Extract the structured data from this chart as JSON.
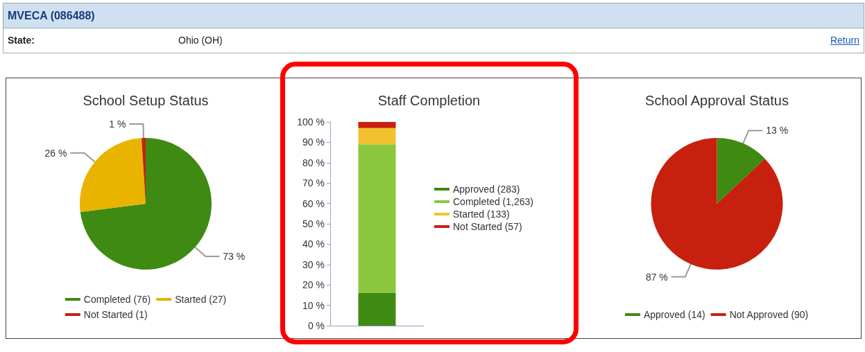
{
  "chart_data": [
    {
      "type": "other",
      "title": "MVECA (086488)",
      "annotations": [
        "State:",
        "Ohio (OH)",
        "Return"
      ]
    },
    {
      "type": "pie",
      "title": "School Setup Status",
      "categories": [
        "Completed (76)",
        "Started (27)",
        "Not Started (1)"
      ],
      "values": [
        73,
        26,
        1
      ],
      "colors": [
        "#3f8a12",
        "#e8b400",
        "#c8200e"
      ],
      "value_labels": [
        "73 %",
        "26 %",
        "1 %"
      ],
      "legend": "bottom"
    },
    {
      "type": "bar",
      "title": "Staff Completion",
      "stacked": true,
      "categories": [
        null
      ],
      "series": [
        {
          "name": "Approved (283)",
          "color": "#3f8a12",
          "values": [
            16
          ]
        },
        {
          "name": "Completed (1,263)",
          "color": "#8cc63f",
          "values": [
            73
          ]
        },
        {
          "name": "Started (133)",
          "color": "#f2c12e",
          "values": [
            8
          ]
        },
        {
          "name": "Not Started (57)",
          "color": "#c8200e",
          "values": [
            3
          ]
        }
      ],
      "ylim": [
        0,
        100
      ],
      "yticks": [
        {
          "value": 0,
          "label": "0 %"
        },
        {
          "value": 10,
          "label": "10 %"
        },
        {
          "value": 20,
          "label": "20 %"
        },
        {
          "value": 30,
          "label": "30 %"
        },
        {
          "value": 40,
          "label": "40 %"
        },
        {
          "value": 50,
          "label": "50 %"
        },
        {
          "value": 60,
          "label": "60 %"
        },
        {
          "value": 70,
          "label": "70 %"
        },
        {
          "value": 80,
          "label": "80 %"
        },
        {
          "value": 90,
          "label": "90 %"
        },
        {
          "value": 100,
          "label": "100 %"
        }
      ],
      "grid": false,
      "legend": "right"
    },
    {
      "type": "pie",
      "title": "School Approval Status",
      "categories": [
        "Approved (14)",
        "Not Approved (90)"
      ],
      "values": [
        13,
        87
      ],
      "colors": [
        "#3f8a12",
        "#c8200e"
      ],
      "value_labels": [
        "13 %",
        "87 %"
      ],
      "legend": "bottom"
    }
  ]
}
